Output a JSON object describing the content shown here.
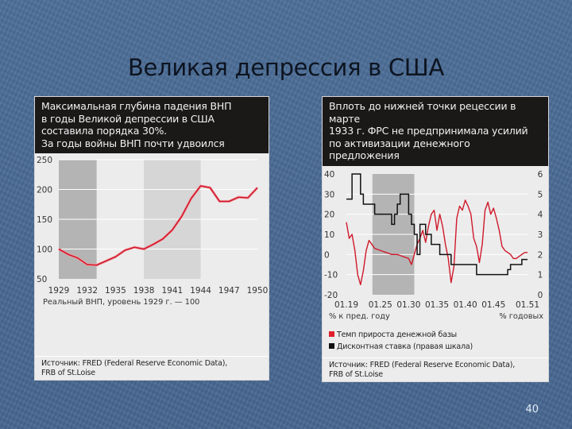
{
  "slide": {
    "title": "Великая депрессия в США",
    "page_number": "40"
  },
  "left_panel": {
    "header_lines": [
      "Максимальная глубина падения ВНП",
      "в годы Великой депрессии в США",
      "составила порядка 30%.",
      "За годы войны ВНП почти удвоился"
    ],
    "note": "Реальный ВНП, уровень 1929 г. — 100",
    "source_lines": [
      "Источник: FRED (Federal Reserve Economic Data),",
      "FRB of St.Loise"
    ]
  },
  "right_panel": {
    "header_lines": [
      "Вплоть до нижней точки рецессии в марте",
      "1933 г. ФРС не предпринимала усилий",
      "по активизации денежного предложения"
    ],
    "left_axis_note": "% к пред. году",
    "right_axis_note": "% годовых",
    "legend": [
      {
        "label": "Темп прироста денежной базы",
        "color": "#e0202c"
      },
      {
        "label": "Дисконтная ставка (правая шкала)",
        "color": "#111111"
      }
    ],
    "source_lines": [
      "Источник: FRED (Federal Reserve Economic Data),",
      "FRB of St.Loise"
    ]
  },
  "colors": {
    "line_red": "#d0182a",
    "line_black": "#111111",
    "shade_dark": "#b4b4b4",
    "shade_light": "#d6d6d6"
  },
  "chart_data": [
    {
      "type": "line",
      "title": "Максимальная глубина падения ВНП в годы Великой депрессии в США составила порядка 30%. За годы войны ВНП почти удвоился",
      "xlabel": "",
      "ylabel": "Реальный ВНП, уровень 1929 г. — 100",
      "x_ticks": [
        "1929",
        "1932",
        "1935",
        "1938",
        "1941",
        "1944",
        "1947",
        "1950"
      ],
      "y_ticks": [
        50,
        100,
        150,
        200,
        250
      ],
      "ylim": [
        50,
        250
      ],
      "xlim": [
        1929,
        1950
      ],
      "grid": true,
      "shaded_periods": [
        [
          1929,
          1933
        ],
        [
          1938,
          1944
        ]
      ],
      "x": [
        1929,
        1930,
        1931,
        1932,
        1933,
        1934,
        1935,
        1936,
        1937,
        1938,
        1939,
        1940,
        1941,
        1942,
        1943,
        1944,
        1945,
        1946,
        1947,
        1948,
        1949,
        1950
      ],
      "values": [
        100,
        91,
        85,
        74,
        73,
        80,
        87,
        98,
        103,
        100,
        108,
        117,
        132,
        155,
        185,
        206,
        203,
        180,
        180,
        187,
        186,
        203
      ]
    },
    {
      "type": "line",
      "title": "Вплоть до нижней точки рецессии в марте 1933 г. ФРС не предпринимала усилий по активизации денежного предложения",
      "x_ticks": [
        "01.19",
        "01.25",
        "01.30",
        "01.35",
        "01.40",
        "01.45",
        "01.51"
      ],
      "y_ticks_left": [
        -20,
        -10,
        0,
        10,
        20,
        30,
        40
      ],
      "y_ticks_right": [
        0,
        1,
        2,
        3,
        4,
        5,
        6
      ],
      "ylim_left": [
        -20,
        40
      ],
      "ylim_right": [
        0,
        6
      ],
      "xlabel_left": "% к пред. году",
      "xlabel_right": "% годовых",
      "grid": true,
      "legend_position": "bottom",
      "shaded_periods": [
        [
          "1923-07",
          "1931-01"
        ]
      ],
      "series": [
        {
          "name": "Темп прироста денежной базы",
          "axis": "left",
          "x": [
            1919.0,
            1919.5,
            1920.0,
            1920.5,
            1921.0,
            1921.5,
            1922.0,
            1922.5,
            1923.0,
            1923.5,
            1924.0,
            1925.0,
            1926.0,
            1927.0,
            1928.0,
            1929.0,
            1930.0,
            1930.5,
            1931.0,
            1931.5,
            1932.0,
            1932.5,
            1933.0,
            1933.5,
            1934.0,
            1934.5,
            1935.0,
            1935.5,
            1936.0,
            1936.5,
            1937.0,
            1937.5,
            1938.0,
            1938.5,
            1939.0,
            1939.5,
            1940.0,
            1940.5,
            1941.0,
            1941.5,
            1942.0,
            1942.5,
            1943.0,
            1943.5,
            1944.0,
            1944.5,
            1945.0,
            1945.5,
            1946.0,
            1946.5,
            1947.0,
            1947.5,
            1948.0,
            1948.5,
            1949.0,
            1949.5,
            1950.0,
            1950.5,
            1951.0
          ],
          "values": [
            16,
            8,
            10,
            2,
            -10,
            -15,
            -8,
            2,
            7,
            5,
            3,
            2,
            1,
            0,
            0,
            -1,
            -2,
            -5,
            0,
            5,
            8,
            12,
            6,
            14,
            20,
            22,
            12,
            20,
            14,
            5,
            -2,
            -14,
            -6,
            18,
            24,
            22,
            27,
            24,
            20,
            8,
            4,
            -4,
            5,
            22,
            26,
            20,
            23,
            18,
            12,
            4,
            2,
            1,
            0,
            -2,
            -2,
            -1,
            0,
            1,
            1
          ]
        },
        {
          "name": "Дисконтная ставка (правая шкала)",
          "axis": "right",
          "step": true,
          "x": [
            1919.0,
            1920.0,
            1921.0,
            1921.5,
            1922.0,
            1924.0,
            1926.0,
            1927.0,
            1927.5,
            1928.0,
            1928.5,
            1929.0,
            1930.0,
            1930.5,
            1931.0,
            1931.5,
            1932.0,
            1933.0,
            1934.0,
            1935.5,
            1937.5,
            1942.0,
            1947.5,
            1948.0,
            1950.0,
            1951.0
          ],
          "values": [
            4.75,
            6,
            6,
            5,
            4.5,
            4,
            4,
            3.5,
            4,
            4.5,
            5,
            5,
            4,
            3.5,
            3,
            2,
            3.5,
            3,
            2.5,
            2,
            1.5,
            1,
            1.25,
            1.5,
            1.75,
            1.75
          ]
        }
      ]
    }
  ]
}
